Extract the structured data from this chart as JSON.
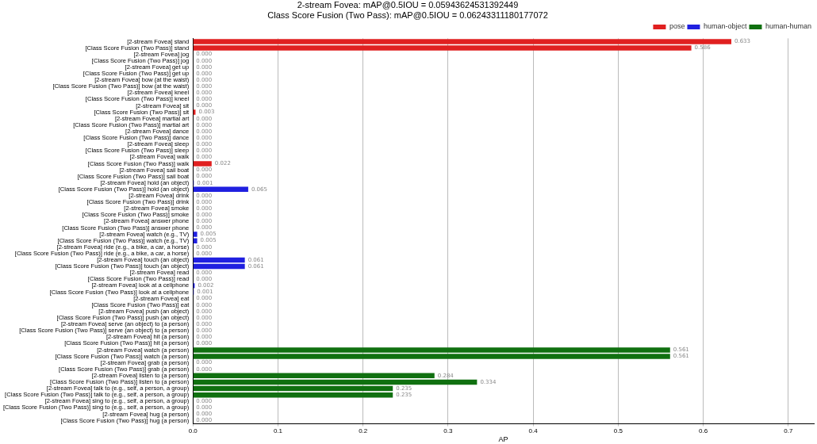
{
  "chart_data": {
    "type": "bar",
    "orientation": "horizontal",
    "title": "2-stream Fovea: mAP@0.5IOU = 0.05943624531392449",
    "subtitle": "Class Score Fusion (Two Pass): mAP@0.5IOU = 0.06243311180177072",
    "xlabel": "AP",
    "categories": [
      "[2-stream Fovea] stand",
      "[Class Score Fusion (Two Pass)] stand",
      "[2-stream Fovea] jog",
      "[Class Score Fusion (Two Pass)] jog",
      "[2-stream Fovea] get up",
      "[Class Score Fusion (Two Pass)] get up",
      "[2-stream Fovea] bow (at the waist)",
      "[Class Score Fusion (Two Pass)] bow (at the waist)",
      "[2-stream Fovea] kneel",
      "[Class Score Fusion (Two Pass)] kneel",
      "[2-stream Fovea] sit",
      "[Class Score Fusion (Two Pass)] sit",
      "[2-stream Fovea] martial art",
      "[Class Score Fusion (Two Pass)] martial art",
      "[2-stream Fovea] dance",
      "[Class Score Fusion (Two Pass)] dance",
      "[2-stream Fovea] sleep",
      "[Class Score Fusion (Two Pass)] sleep",
      "[2-stream Fovea] walk",
      "[Class Score Fusion (Two Pass)] walk",
      "[2-stream Fovea] sail boat",
      "[Class Score Fusion (Two Pass)] sail boat",
      "[2-stream Fovea] hold (an object)",
      "[Class Score Fusion (Two Pass)] hold (an object)",
      "[2-stream Fovea] drink",
      "[Class Score Fusion (Two Pass)] drink",
      "[2-stream Fovea] smoke",
      "[Class Score Fusion (Two Pass)] smoke",
      "[2-stream Fovea] answer phone",
      "[Class Score Fusion (Two Pass)] answer phone",
      "[2-stream Fovea] watch (e.g., TV)",
      "[Class Score Fusion (Two Pass)] watch (e.g., TV)",
      "[2-stream Fovea] ride (e.g., a bike, a car, a horse)",
      "[Class Score Fusion (Two Pass)] ride (e.g., a bike, a car, a horse)",
      "[2-stream Fovea] touch (an object)",
      "[Class Score Fusion (Two Pass)] touch (an object)",
      "[2-stream Fovea] read",
      "[Class Score Fusion (Two Pass)] read",
      "[2-stream Fovea] look at a cellphone",
      "[Class Score Fusion (Two Pass)] look at a cellphone",
      "[2-stream Fovea] eat",
      "[Class Score Fusion (Two Pass)] eat",
      "[2-stream Fovea] push (an object)",
      "[Class Score Fusion (Two Pass)] push (an object)",
      "[2-stream Fovea] serve (an object) to (a person)",
      "[Class Score Fusion (Two Pass)] serve (an object) to (a person)",
      "[2-stream Fovea] hit (a person)",
      "[Class Score Fusion (Two Pass)] hit (a person)",
      "[2-stream Fovea] watch (a person)",
      "[Class Score Fusion (Two Pass)] watch (a person)",
      "[2-stream Fovea] grab (a person)",
      "[Class Score Fusion (Two Pass)] grab (a person)",
      "[2-stream Fovea] listen to (a person)",
      "[Class Score Fusion (Two Pass)] listen to (a person)",
      "[2-stream Fovea] talk to (e.g., self, a person, a group)",
      "[Class Score Fusion (Two Pass)] talk to (e.g., self, a person, a group)",
      "[2-stream Fovea] sing to (e.g., self, a person, a group)",
      "[Class Score Fusion (Two Pass)] sing to (e.g., self, a person, a group)",
      "[2-stream Fovea] hug (a person)",
      "[Class Score Fusion (Two Pass)] hug (a person)"
    ],
    "series": [
      {
        "name": "pose",
        "color": "#e02020",
        "values": [
          0.633,
          0.586,
          0,
          0,
          0,
          0,
          0,
          0,
          0,
          0,
          0,
          0.003,
          0,
          0,
          0,
          0,
          0,
          0,
          0,
          0.022,
          null,
          null,
          null,
          null,
          null,
          null,
          null,
          null,
          null,
          null,
          null,
          null,
          null,
          null,
          null,
          null,
          null,
          null,
          null,
          null,
          null,
          null,
          null,
          null,
          null,
          null,
          null,
          null,
          null,
          null,
          null,
          null,
          null,
          null,
          null,
          null,
          null,
          null,
          null,
          null
        ],
        "value_labels": [
          "0.633",
          "0.586",
          "0.000",
          "0.000",
          "0.000",
          "0.000",
          "0.000",
          "0.000",
          "0.000",
          "0.000",
          "0.000",
          "0.003",
          "0.000",
          "0.000",
          "0.000",
          "0.000",
          "0.000",
          "0.000",
          "0.000",
          "0.022",
          null,
          null,
          null,
          null,
          null,
          null,
          null,
          null,
          null,
          null,
          null,
          null,
          null,
          null,
          null,
          null,
          null,
          null,
          null,
          null,
          null,
          null,
          null,
          null,
          null,
          null,
          null,
          null,
          null,
          null,
          null,
          null,
          null,
          null,
          null,
          null,
          null,
          null,
          null,
          null
        ]
      },
      {
        "name": "human-object",
        "color": "#2020e0",
        "values": [
          null,
          null,
          null,
          null,
          null,
          null,
          null,
          null,
          null,
          null,
          null,
          null,
          null,
          null,
          null,
          null,
          null,
          null,
          null,
          null,
          0,
          0,
          0.001,
          0.065,
          0,
          0,
          0,
          0,
          0,
          0,
          0.005,
          0.005,
          0,
          0,
          0.061,
          0.061,
          0,
          0,
          0.002,
          0.001,
          0,
          0,
          0,
          0,
          0,
          0,
          0,
          0,
          null,
          null,
          null,
          null,
          null,
          null,
          null,
          null,
          null,
          null,
          null,
          null
        ],
        "value_labels": [
          null,
          null,
          null,
          null,
          null,
          null,
          null,
          null,
          null,
          null,
          null,
          null,
          null,
          null,
          null,
          null,
          null,
          null,
          null,
          null,
          "0.000",
          "0.000",
          "0.001",
          "0.065",
          "0.000",
          "0.000",
          "0.000",
          "0.000",
          "0.000",
          "0.000",
          "0.005",
          "0.005",
          "0.000",
          "0.000",
          "0.061",
          "0.061",
          "0.000",
          "0.000",
          "0.002",
          "0.001",
          "0.000",
          "0.000",
          "0.000",
          "0.000",
          "0.000",
          "0.000",
          "0.000",
          "0.000",
          null,
          null,
          null,
          null,
          null,
          null,
          null,
          null,
          null,
          null,
          null,
          null
        ]
      },
      {
        "name": "human-human",
        "color": "#107010",
        "values": [
          null,
          null,
          null,
          null,
          null,
          null,
          null,
          null,
          null,
          null,
          null,
          null,
          null,
          null,
          null,
          null,
          null,
          null,
          null,
          null,
          null,
          null,
          null,
          null,
          null,
          null,
          null,
          null,
          null,
          null,
          null,
          null,
          null,
          null,
          null,
          null,
          null,
          null,
          null,
          null,
          null,
          null,
          null,
          null,
          null,
          null,
          null,
          null,
          0.561,
          0.561,
          0,
          0,
          0.284,
          0.334,
          0.235,
          0.235,
          0,
          0,
          0,
          0
        ],
        "value_labels": [
          null,
          null,
          null,
          null,
          null,
          null,
          null,
          null,
          null,
          null,
          null,
          null,
          null,
          null,
          null,
          null,
          null,
          null,
          null,
          null,
          null,
          null,
          null,
          null,
          null,
          null,
          null,
          null,
          null,
          null,
          null,
          null,
          null,
          null,
          null,
          null,
          null,
          null,
          null,
          null,
          null,
          null,
          null,
          null,
          null,
          null,
          null,
          null,
          "0.561",
          "0.561",
          "0.000",
          "0.000",
          "0.284",
          "0.334",
          "0.235",
          "0.235",
          "0.000",
          "0.000",
          "0.000",
          "0.000"
        ]
      }
    ],
    "xlim": [
      0,
      0.73
    ],
    "xticks": [
      {
        "value": 0,
        "label": "0.0"
      },
      {
        "value": 0.1,
        "label": "0.1"
      },
      {
        "value": 0.2,
        "label": "0.2"
      },
      {
        "value": 0.3,
        "label": "0.3"
      },
      {
        "value": 0.4,
        "label": "0.4"
      },
      {
        "value": 0.5,
        "label": "0.5"
      },
      {
        "value": 0.6,
        "label": "0.6"
      },
      {
        "value": 0.7,
        "label": "0.7"
      }
    ],
    "grid": "x",
    "legend": "top right"
  }
}
